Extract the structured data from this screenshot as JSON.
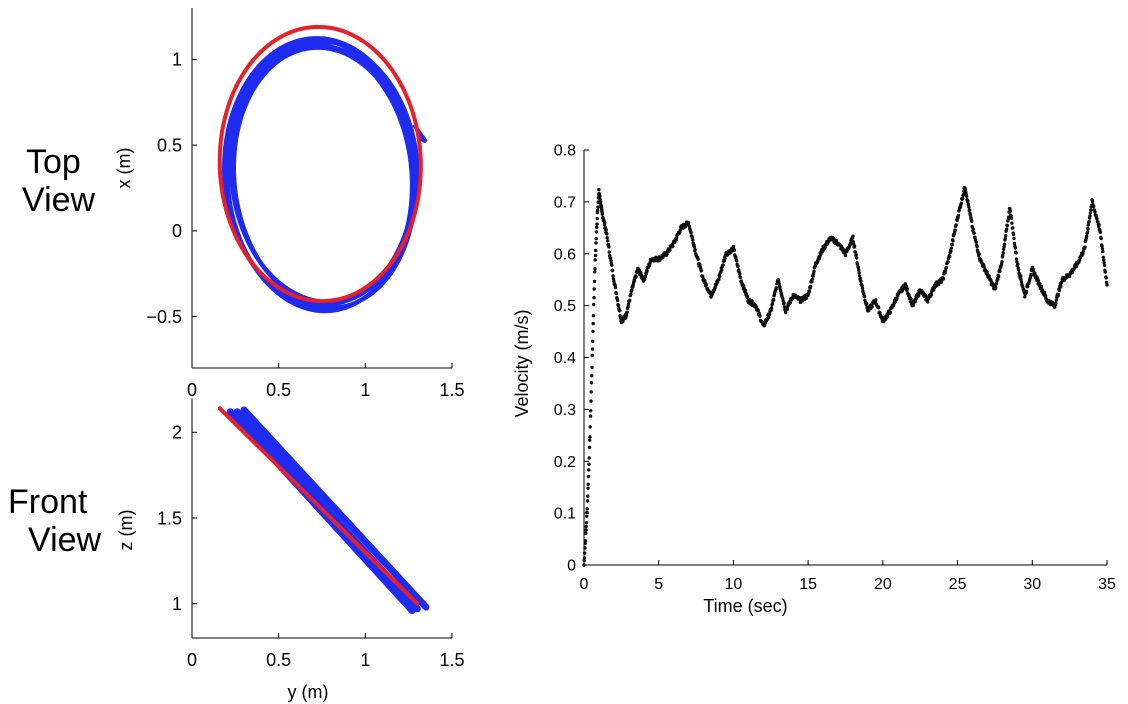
{
  "labels": {
    "top_view": [
      "Top",
      "View"
    ],
    "front_view": [
      "Front",
      "View"
    ]
  },
  "colors": {
    "reference": "#e8202a",
    "measured": "#1f2cf0",
    "velocity": "#111111"
  },
  "chart_data": [
    {
      "id": "top-view",
      "type": "line",
      "title": "",
      "xlabel": "",
      "ylabel": "x (m)",
      "xlim": [
        0,
        1.5
      ],
      "ylim": [
        -0.8,
        1.3
      ],
      "xticks": [
        "0",
        "0.5",
        "1",
        "1.5"
      ],
      "yticks": [
        "−0.5",
        "0",
        "0.5",
        "1"
      ],
      "xtick_values": [
        0,
        0.5,
        1,
        1.5
      ],
      "ytick_values": [
        -0.5,
        0,
        0.5,
        1
      ],
      "series": [
        {
          "role": "reference",
          "shape": "ellipse",
          "center": [
            0.74,
            0.39
          ],
          "radii": [
            0.58,
            0.8
          ]
        },
        {
          "role": "measured",
          "shape": "ellipse-loops",
          "center": [
            0.75,
            0.33
          ],
          "radii": [
            0.55,
            0.78
          ],
          "loops": 6
        }
      ]
    },
    {
      "id": "front-view",
      "type": "line",
      "title": "",
      "xlabel": "y (m)",
      "ylabel": "z (m)",
      "xlim": [
        0,
        1.5
      ],
      "ylim": [
        0.8,
        2.2
      ],
      "xticks": [
        "0",
        "0.5",
        "1",
        "1.5"
      ],
      "yticks": [
        "1",
        "1.5",
        "2"
      ],
      "xtick_values": [
        0,
        0.5,
        1,
        1.5
      ],
      "ytick_values": [
        1,
        1.5,
        2
      ],
      "series": [
        {
          "role": "reference",
          "x": [
            0.16,
            1.3
          ],
          "y": [
            2.14,
            1.0
          ]
        },
        {
          "role": "measured",
          "x": [
            0.22,
            1.28
          ],
          "y": [
            2.12,
            0.97
          ]
        },
        {
          "role": "measured",
          "x": [
            0.26,
            1.3
          ],
          "y": [
            2.12,
            0.97
          ]
        },
        {
          "role": "measured",
          "x": [
            0.3,
            1.35
          ],
          "y": [
            2.13,
            0.98
          ]
        },
        {
          "role": "measured",
          "x": [
            0.24,
            1.27
          ],
          "y": [
            2.1,
            0.96
          ]
        }
      ]
    },
    {
      "id": "velocity",
      "type": "scatter",
      "title": "",
      "xlabel": "Time (sec)",
      "ylabel": "Velocity (m/s)",
      "xlim": [
        0,
        35
      ],
      "ylim": [
        0,
        0.8
      ],
      "xticks": [
        "0",
        "5",
        "10",
        "15",
        "20",
        "25",
        "30",
        "35"
      ],
      "yticks": [
        "0",
        "0.1",
        "0.2",
        "0.3",
        "0.4",
        "0.5",
        "0.6",
        "0.7",
        "0.8"
      ],
      "xtick_values": [
        0,
        5,
        10,
        15,
        20,
        25,
        30,
        35
      ],
      "ytick_values": [
        0,
        0.1,
        0.2,
        0.3,
        0.4,
        0.5,
        0.6,
        0.7,
        0.8
      ],
      "x": [
        0,
        0.1,
        0.2,
        0.3,
        0.4,
        0.5,
        0.6,
        0.7,
        0.8,
        0.9,
        1.0,
        1.2,
        1.5,
        2.0,
        2.5,
        2.8,
        3.2,
        3.6,
        4.0,
        4.5,
        5.0,
        5.5,
        6.0,
        6.5,
        7.0,
        7.5,
        8.0,
        8.5,
        9.0,
        9.5,
        10.0,
        10.5,
        11.0,
        11.5,
        12.0,
        12.5,
        13.0,
        13.5,
        14.0,
        14.5,
        15.0,
        15.5,
        16.0,
        16.5,
        17.0,
        17.5,
        18.0,
        18.5,
        19.0,
        19.5,
        20.0,
        20.5,
        21.0,
        21.5,
        22.0,
        22.5,
        23.0,
        23.5,
        24.0,
        24.5,
        25.0,
        25.5,
        26.0,
        26.5,
        27.0,
        27.5,
        28.0,
        28.5,
        29.0,
        29.5,
        30.0,
        30.5,
        31.0,
        31.5,
        32.0,
        32.5,
        33.0,
        33.5,
        34.0,
        34.5,
        35.0
      ],
      "y": [
        0.0,
        0.05,
        0.1,
        0.17,
        0.25,
        0.35,
        0.45,
        0.55,
        0.62,
        0.68,
        0.72,
        0.68,
        0.64,
        0.55,
        0.47,
        0.48,
        0.53,
        0.57,
        0.55,
        0.59,
        0.59,
        0.6,
        0.62,
        0.65,
        0.66,
        0.6,
        0.55,
        0.52,
        0.55,
        0.6,
        0.61,
        0.55,
        0.51,
        0.5,
        0.46,
        0.49,
        0.55,
        0.49,
        0.52,
        0.51,
        0.52,
        0.58,
        0.61,
        0.63,
        0.62,
        0.6,
        0.63,
        0.55,
        0.49,
        0.51,
        0.47,
        0.49,
        0.52,
        0.54,
        0.5,
        0.53,
        0.51,
        0.54,
        0.55,
        0.6,
        0.67,
        0.73,
        0.65,
        0.59,
        0.56,
        0.53,
        0.59,
        0.69,
        0.58,
        0.52,
        0.57,
        0.54,
        0.51,
        0.5,
        0.55,
        0.56,
        0.58,
        0.61,
        0.7,
        0.65,
        0.54
      ]
    }
  ]
}
